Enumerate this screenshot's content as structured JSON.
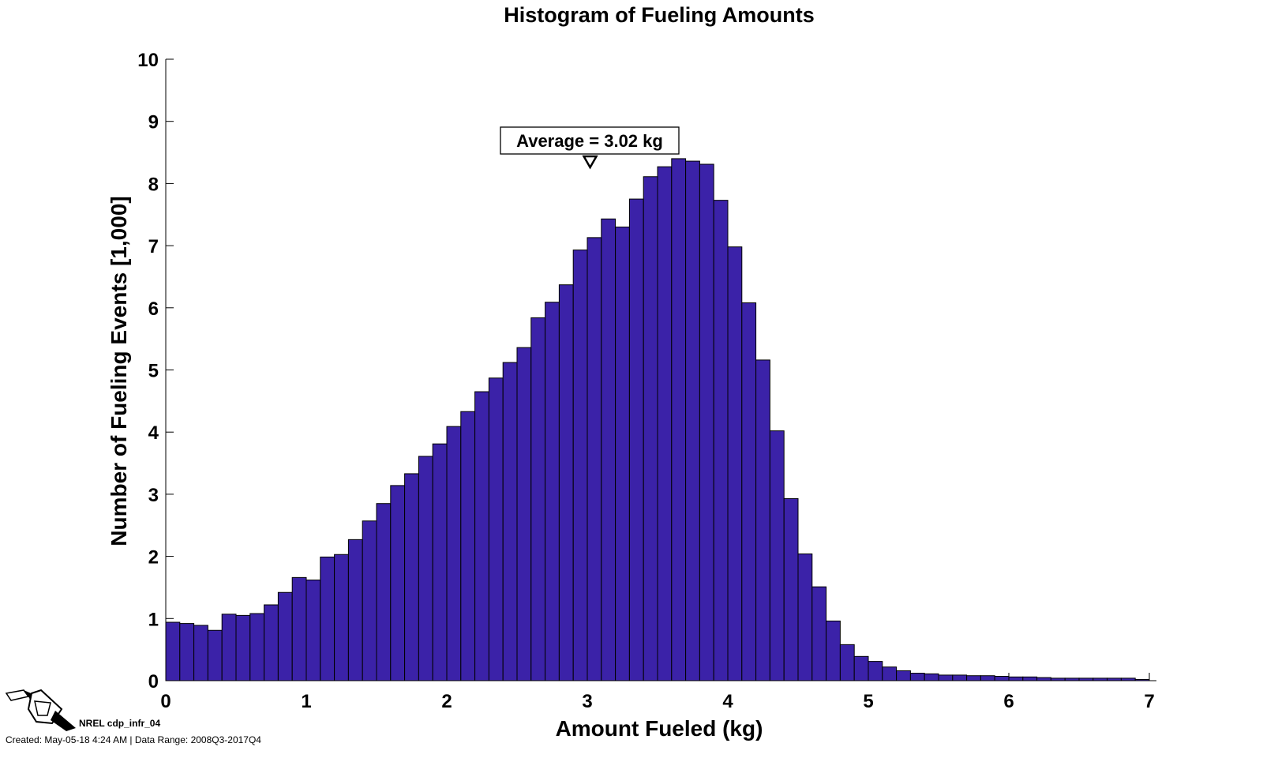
{
  "chart_data": {
    "type": "bar",
    "title": "Histogram of Fueling Amounts",
    "xlabel": "Amount Fueled (kg)",
    "ylabel": "Number of Fueling Events [1,000]",
    "xlim": [
      0,
      7
    ],
    "ylim": [
      0,
      10
    ],
    "xticks": [
      "0",
      "1",
      "2",
      "3",
      "4",
      "5",
      "6",
      "7"
    ],
    "yticks": [
      "0",
      "1",
      "2",
      "3",
      "4",
      "5",
      "6",
      "7",
      "8",
      "9",
      "10"
    ],
    "bin_width": 0.1,
    "bin_start": 0.05,
    "bar_color": "#3b22a8",
    "values": [
      0.94,
      0.92,
      0.89,
      0.81,
      1.07,
      1.05,
      1.08,
      1.22,
      1.42,
      1.66,
      1.62,
      1.99,
      2.03,
      2.27,
      2.57,
      2.85,
      3.14,
      3.33,
      3.61,
      3.81,
      4.09,
      4.33,
      4.65,
      4.87,
      5.12,
      5.36,
      5.84,
      6.09,
      6.37,
      6.93,
      7.13,
      7.43,
      7.3,
      7.75,
      8.11,
      8.27,
      8.4,
      8.36,
      8.31,
      7.73,
      6.98,
      6.08,
      5.16,
      4.02,
      2.93,
      2.04,
      1.51,
      0.96,
      0.58,
      0.39,
      0.31,
      0.22,
      0.16,
      0.12,
      0.11,
      0.09,
      0.09,
      0.08,
      0.08,
      0.07,
      0.06,
      0.06,
      0.05,
      0.04,
      0.04,
      0.04,
      0.04,
      0.04,
      0.04,
      0.02
    ],
    "annotation": {
      "text": "Average = 3.02 kg",
      "x": 3.02
    },
    "grid": false,
    "legend": false
  },
  "footer": {
    "id_label": "NREL cdp_infr_04",
    "info": "Created: May-05-18  4:24 AM | Data Range: 2008Q3-2017Q4",
    "logo_icon": "fuel-nozzle-icon"
  }
}
